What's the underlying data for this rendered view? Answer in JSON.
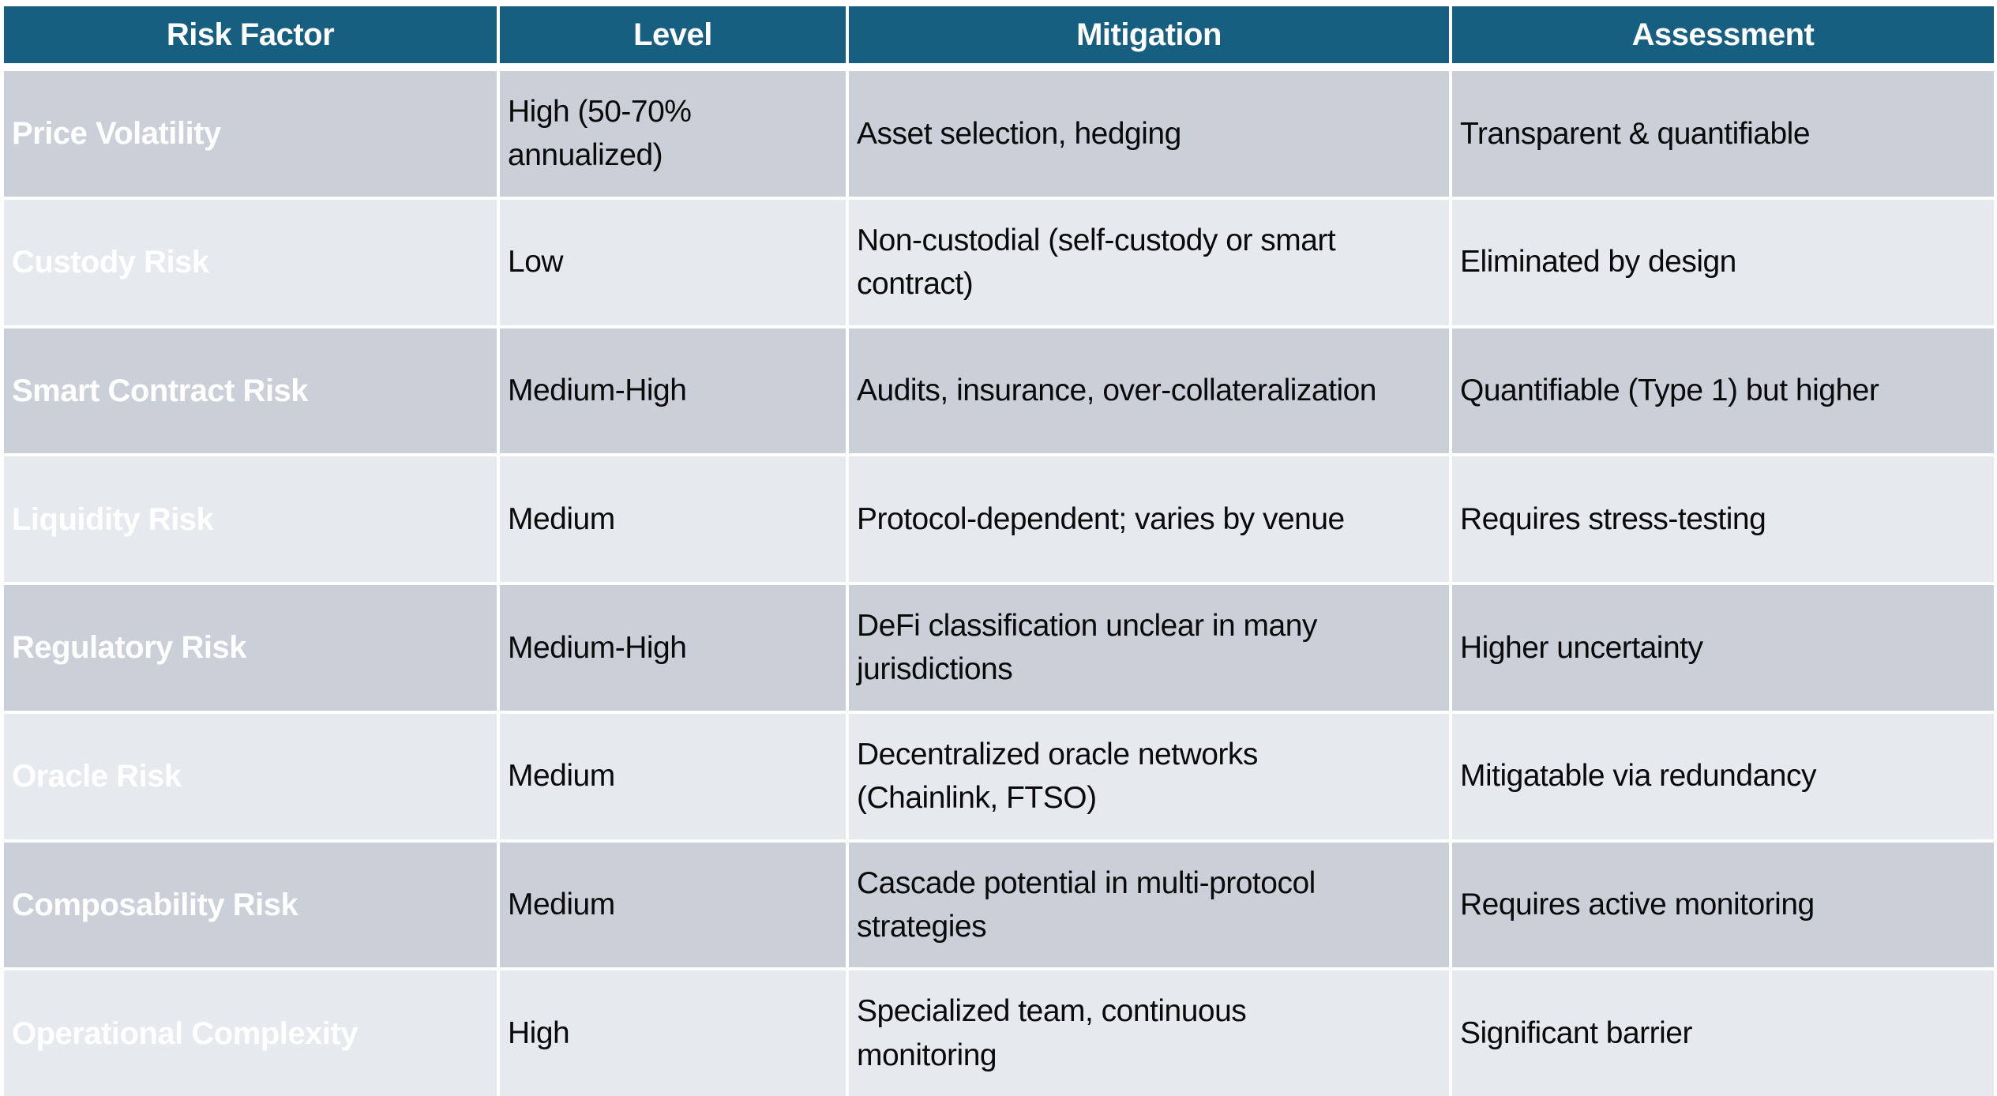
{
  "colors": {
    "header_bg": "#165F80",
    "band_dark": "#CBCFD7",
    "band_light": "#E6E9ED",
    "header_text": "#FFFFFF",
    "body_text": "#0A0A0A",
    "gridline": "#FFFFFF"
  },
  "table": {
    "columns": [
      {
        "key": "risk_factor",
        "label": "Risk Factor"
      },
      {
        "key": "level",
        "label": "Level"
      },
      {
        "key": "mitigation",
        "label": "Mitigation"
      },
      {
        "key": "assessment",
        "label": "Assessment"
      }
    ],
    "rows": [
      {
        "risk_factor": "Price Volatility",
        "level": "High (50-70% annualized)",
        "mitigation": "Asset selection, hedging",
        "assessment": "Transparent & quantifiable"
      },
      {
        "risk_factor": "Custody Risk",
        "level": "Low",
        "mitigation": "Non-custodial (self-custody or smart contract)",
        "assessment": "Eliminated by design"
      },
      {
        "risk_factor": "Smart Contract Risk",
        "level": "Medium-High",
        "mitigation": "Audits, insurance, over-collateralization",
        "assessment": "Quantifiable (Type 1) but higher"
      },
      {
        "risk_factor": "Liquidity Risk",
        "level": "Medium",
        "mitigation": "Protocol-dependent; varies by venue",
        "assessment": "Requires stress-testing"
      },
      {
        "risk_factor": "Regulatory Risk",
        "level": "Medium-High",
        "mitigation": "DeFi classification unclear in many jurisdictions",
        "assessment": "Higher uncertainty"
      },
      {
        "risk_factor": "Oracle Risk",
        "level": "Medium",
        "mitigation": "Decentralized oracle networks (Chainlink, FTSO)",
        "assessment": "Mitigatable via redundancy"
      },
      {
        "risk_factor": "Composability Risk",
        "level": "Medium",
        "mitigation": "Cascade potential in multi-protocol strategies",
        "assessment": "Requires active monitoring"
      },
      {
        "risk_factor": "Operational Complexity",
        "level": "High",
        "mitigation": "Specialized team, continuous monitoring",
        "assessment": "Significant barrier"
      }
    ]
  }
}
